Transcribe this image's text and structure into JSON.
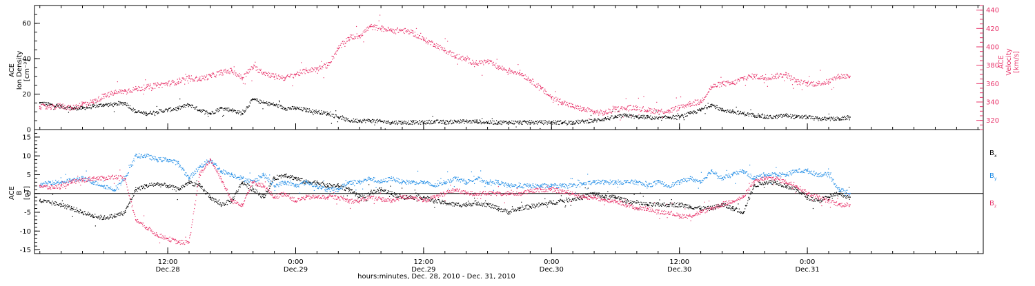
{
  "xaxis": {
    "title": "hours:minutes, Dec. 28, 2010 - Dec. 31, 2010",
    "ticks": [
      {
        "t": 12,
        "time": "12:00",
        "date": "Dec.28"
      },
      {
        "t": 24,
        "time": "0:00",
        "date": "Dec.29"
      },
      {
        "t": 36,
        "time": "12:00",
        "date": "Dec.29"
      },
      {
        "t": 48,
        "time": "0:00",
        "date": "Dec.30"
      },
      {
        "t": 60,
        "time": "12:00",
        "date": "Dec.30"
      },
      {
        "t": 72,
        "time": "0:00",
        "date": "Dec.31"
      }
    ]
  },
  "colors": {
    "black": "#000000",
    "pink": "#e8336a",
    "blue": "#1f8ce6"
  },
  "chart_data": [
    {
      "type": "scatter",
      "panel": "top",
      "xlabel": "hours:minutes, Dec. 28, 2010 - Dec. 31, 2010",
      "x_units": "hours from 00:00 Dec. 28, 2010",
      "xlim": [
        -0.5,
        88.5
      ],
      "ylabel_left": [
        "ACE",
        "Ion Density",
        "[cm⁻³]"
      ],
      "ylim_left": [
        0,
        70
      ],
      "yticks_left": [
        0,
        20,
        40,
        60
      ],
      "ylabel_right": [
        "ACE",
        "Velocity",
        "[km/s]"
      ],
      "ylim_right": [
        310,
        445
      ],
      "yticks_right": [
        320,
        340,
        360,
        380,
        400,
        420,
        440
      ],
      "series": [
        {
          "axis": "left",
          "color": "#000000",
          "x": [
            0,
            1,
            2,
            3,
            4,
            5,
            6,
            7,
            8,
            9,
            10,
            11,
            12,
            13,
            14,
            15,
            16,
            17,
            18,
            19,
            20,
            21,
            22,
            23,
            24,
            25,
            26,
            27,
            28,
            29,
            30,
            31,
            32,
            33,
            34,
            35,
            36,
            37,
            38,
            39,
            40,
            41,
            42,
            43,
            44,
            45,
            46,
            47,
            48,
            49,
            50,
            51,
            52,
            53,
            54,
            55,
            56,
            57,
            58,
            59,
            60,
            61,
            62,
            63,
            64,
            65,
            66,
            67,
            67.5,
            68,
            69,
            70,
            71,
            72,
            73,
            74,
            75,
            76
          ],
          "y": [
            15,
            14,
            13,
            12,
            12,
            13,
            14,
            14,
            15,
            10,
            9,
            10,
            11,
            12,
            14,
            11,
            9,
            12,
            11,
            9,
            17,
            15,
            14,
            12,
            12,
            11,
            10,
            9,
            7,
            5,
            5,
            5,
            4.5,
            4,
            4,
            4,
            4,
            4.5,
            4,
            4.5,
            4.5,
            4.5,
            4,
            4,
            4,
            4,
            4,
            4,
            4,
            4,
            4,
            4.5,
            5,
            6,
            7,
            8,
            7,
            7,
            6,
            7,
            7,
            9,
            11,
            14,
            11,
            10,
            9,
            8,
            8,
            7,
            7,
            8,
            7,
            7,
            6,
            6,
            6,
            7
          ]
        },
        {
          "axis": "right",
          "color": "#e8336a",
          "x": [
            0,
            1,
            2,
            3,
            4,
            5,
            6,
            7,
            8,
            9,
            10,
            11,
            12,
            13,
            14,
            15,
            16,
            17,
            18,
            19,
            20,
            21,
            22,
            23,
            24,
            25,
            26,
            27,
            28,
            29,
            30,
            31,
            32,
            33,
            34,
            35,
            36,
            37,
            38,
            39,
            40,
            41,
            42,
            43,
            44,
            45,
            46,
            47,
            48,
            49,
            50,
            51,
            52,
            53,
            54,
            55,
            56,
            57,
            58,
            59,
            60,
            61,
            62,
            63,
            64,
            65,
            66,
            67,
            68,
            69,
            70,
            71,
            72,
            73,
            74,
            75,
            76
          ],
          "y": [
            335,
            334,
            336,
            333,
            338,
            340,
            346,
            350,
            352,
            354,
            356,
            358,
            360,
            362,
            366,
            365,
            368,
            372,
            374,
            366,
            378,
            372,
            368,
            366,
            370,
            374,
            376,
            380,
            398,
            410,
            412,
            422,
            420,
            418,
            418,
            415,
            408,
            403,
            396,
            390,
            386,
            382,
            384,
            378,
            374,
            372,
            364,
            355,
            345,
            340,
            335,
            332,
            329,
            328,
            332,
            333,
            334,
            331,
            330,
            330,
            334,
            338,
            340,
            356,
            360,
            360,
            366,
            368,
            366,
            368,
            370,
            362,
            360,
            360,
            362,
            368,
            368
          ]
        }
      ]
    },
    {
      "type": "scatter",
      "panel": "bottom",
      "xlim": [
        -0.5,
        88.5
      ],
      "ylabel": [
        "ACE",
        "B",
        "[nT]"
      ],
      "ylim": [
        -16,
        17
      ],
      "yticks": [
        -15,
        -10,
        -5,
        0,
        5,
        10,
        15
      ],
      "zero_line": true,
      "series": [
        {
          "name": "Bx",
          "color": "#000000",
          "x": [
            0,
            1,
            2,
            3,
            4,
            5,
            6,
            7,
            8,
            9,
            10,
            11,
            12,
            13,
            14,
            15,
            16,
            17,
            18,
            19,
            20,
            21,
            22,
            23,
            24,
            25,
            26,
            27,
            28,
            29,
            30,
            31,
            32,
            33,
            34,
            35,
            36,
            37,
            38,
            39,
            40,
            41,
            42,
            43,
            44,
            45,
            46,
            47,
            48,
            49,
            50,
            51,
            52,
            53,
            54,
            55,
            56,
            57,
            58,
            59,
            60,
            61,
            62,
            63,
            64,
            65,
            66,
            67,
            68,
            69,
            70,
            71,
            72,
            73,
            74,
            75,
            76
          ],
          "y": [
            -2,
            -2.5,
            -3,
            -4,
            -5,
            -6,
            -6.5,
            -6,
            -5,
            1,
            2,
            2.5,
            2,
            1,
            3,
            2,
            -1,
            -3,
            -2,
            3,
            1,
            -1,
            4,
            5,
            4,
            3,
            3,
            2,
            2,
            1,
            -1,
            0,
            1,
            0,
            -1,
            -1,
            -1,
            -2,
            -2.5,
            -3,
            -3,
            -2.5,
            -3,
            -4,
            -5,
            -4,
            -3.5,
            -3,
            -2.5,
            -2,
            -1.5,
            -1,
            0,
            -1,
            -1,
            -2,
            -2.5,
            -3,
            -3,
            -3,
            -3,
            -3.5,
            -4,
            -4,
            -3,
            -4,
            -5,
            2,
            3,
            3,
            2,
            1,
            -1,
            -2,
            -1,
            0,
            -1
          ]
        },
        {
          "name": "By",
          "color": "#1f8ce6",
          "x": [
            0,
            1,
            2,
            3,
            4,
            5,
            6,
            7,
            8,
            9,
            10,
            11,
            12,
            13,
            14,
            15,
            16,
            17,
            18,
            19,
            20,
            21,
            22,
            23,
            24,
            25,
            26,
            27,
            28,
            29,
            30,
            31,
            32,
            33,
            34,
            35,
            36,
            37,
            38,
            39,
            40,
            41,
            42,
            43,
            44,
            45,
            46,
            47,
            48,
            49,
            50,
            51,
            52,
            53,
            54,
            55,
            56,
            57,
            58,
            59,
            60,
            61,
            62,
            63,
            64,
            65,
            66,
            67,
            68,
            69,
            70,
            71,
            72,
            73,
            74,
            75,
            76
          ],
          "y": [
            2,
            3,
            3,
            3.5,
            4,
            3,
            2,
            1,
            4,
            10,
            10,
            9,
            9,
            8,
            4,
            7,
            9,
            6,
            5,
            4,
            3,
            5,
            2,
            3,
            2,
            3,
            2,
            1,
            1,
            3,
            3,
            4,
            3,
            4,
            3,
            3,
            3,
            2,
            3,
            4,
            3,
            4,
            3,
            3,
            2,
            2,
            2,
            2,
            2,
            2,
            2,
            2.5,
            3,
            3,
            3,
            3,
            3,
            2,
            3,
            2,
            3,
            4,
            3,
            6,
            4,
            5,
            6,
            4,
            5,
            5,
            5,
            6,
            6,
            5,
            5,
            1,
            0
          ]
        },
        {
          "name": "Bz",
          "color": "#e8336a",
          "x": [
            0,
            1,
            2,
            3,
            4,
            5,
            6,
            7,
            8,
            9,
            10,
            11,
            12,
            13,
            14,
            15,
            16,
            17,
            18,
            19,
            20,
            21,
            22,
            23,
            24,
            25,
            26,
            27,
            28,
            29,
            30,
            31,
            32,
            33,
            34,
            35,
            36,
            37,
            38,
            39,
            40,
            41,
            42,
            43,
            44,
            45,
            46,
            47,
            48,
            49,
            50,
            51,
            52,
            53,
            54,
            55,
            56,
            57,
            58,
            59,
            60,
            61,
            62,
            63,
            64,
            65,
            66,
            67,
            68,
            69,
            70,
            71,
            72,
            73,
            74,
            75,
            76
          ],
          "y": [
            2,
            1.5,
            2,
            3,
            3.5,
            4,
            4,
            4.5,
            4,
            -7,
            -9,
            -11,
            -12,
            -13,
            -13,
            5,
            9,
            4,
            -2,
            -3,
            3,
            2,
            -1,
            0,
            -2,
            -1,
            -1,
            -1,
            -1,
            -2,
            -2,
            -1,
            -1.5,
            -2,
            -1,
            -1,
            -2,
            -1,
            0,
            1,
            0,
            0,
            0,
            0,
            0,
            0,
            0.5,
            1,
            1,
            0.5,
            0,
            -1,
            -1,
            -2,
            -2,
            -3,
            -4,
            -4,
            -5,
            -5,
            -6,
            -6,
            -5,
            -4,
            -3,
            -2,
            -1,
            3,
            4,
            4,
            3,
            2,
            0,
            -1,
            -2,
            -3,
            -3
          ]
        }
      ]
    }
  ]
}
